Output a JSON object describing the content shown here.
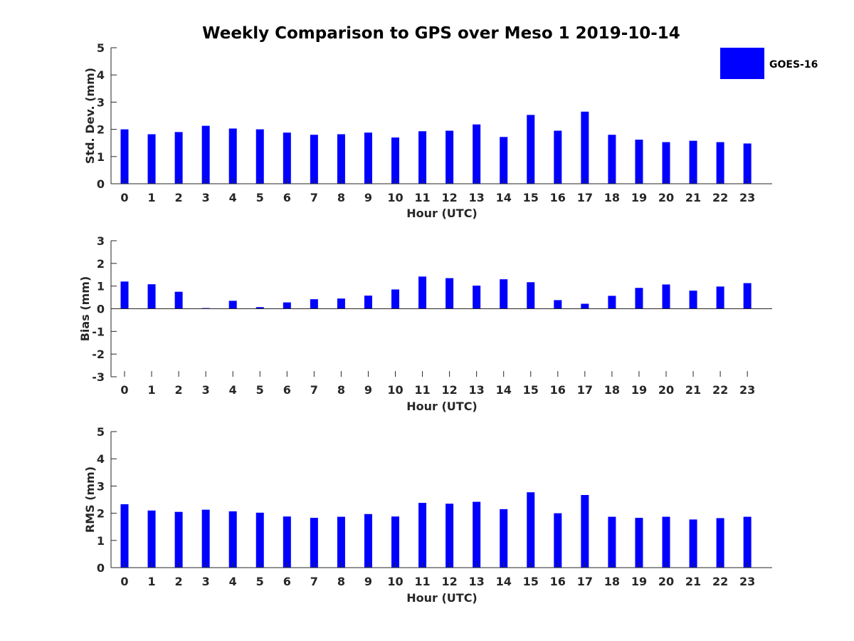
{
  "colors": {
    "bar": "#0000ff",
    "axis": "#262626",
    "background": "#ffffff"
  },
  "chart_data": {
    "title": "Weekly Comparison to GPS over Meso 1 2019-10-14",
    "legend": {
      "label": "GOES-16",
      "position": "top-right"
    },
    "type": "bar",
    "categories": [
      "0",
      "1",
      "2",
      "3",
      "4",
      "5",
      "6",
      "7",
      "8",
      "9",
      "10",
      "11",
      "12",
      "13",
      "14",
      "15",
      "16",
      "17",
      "18",
      "19",
      "20",
      "21",
      "22",
      "23"
    ],
    "panels": [
      {
        "id": "std",
        "ylabel": "Std. Dev. (mm)",
        "xlabel": "Hour (UTC)",
        "ylim": [
          0,
          5
        ],
        "yticks": [
          "0",
          "1",
          "2",
          "3",
          "4",
          "5"
        ],
        "series": [
          {
            "name": "GOES-16",
            "values": [
              2.0,
              1.82,
              1.9,
              2.13,
              2.03,
              2.0,
              1.88,
              1.8,
              1.82,
              1.88,
              1.7,
              1.93,
              1.95,
              2.18,
              1.72,
              2.53,
              1.95,
              2.65,
              1.8,
              1.62,
              1.53,
              1.58,
              1.53,
              1.48
            ]
          }
        ]
      },
      {
        "id": "bias",
        "ylabel": "Bias (mm)",
        "xlabel": "Hour (UTC)",
        "ylim": [
          -3,
          3
        ],
        "yticks": [
          "-3",
          "-2",
          "-1",
          "0",
          "1",
          "2",
          "3"
        ],
        "series": [
          {
            "name": "GOES-16",
            "values": [
              1.2,
              1.08,
              0.75,
              0.03,
              0.35,
              0.07,
              0.28,
              0.42,
              0.45,
              0.58,
              0.85,
              1.42,
              1.35,
              1.02,
              1.3,
              1.17,
              0.38,
              0.22,
              0.57,
              0.92,
              1.07,
              0.8,
              0.98,
              1.13
            ]
          }
        ]
      },
      {
        "id": "rms",
        "ylabel": "RMS (mm)",
        "xlabel": "Hour (UTC)",
        "ylim": [
          0,
          5
        ],
        "yticks": [
          "0",
          "1",
          "2",
          "3",
          "4",
          "5"
        ],
        "series": [
          {
            "name": "GOES-16",
            "values": [
              2.33,
              2.1,
              2.05,
              2.13,
              2.07,
              2.02,
              1.88,
              1.83,
              1.87,
              1.97,
              1.88,
              2.38,
              2.35,
              2.42,
              2.15,
              2.77,
              2.0,
              2.67,
              1.87,
              1.83,
              1.87,
              1.77,
              1.82,
              1.87
            ]
          }
        ]
      }
    ]
  }
}
